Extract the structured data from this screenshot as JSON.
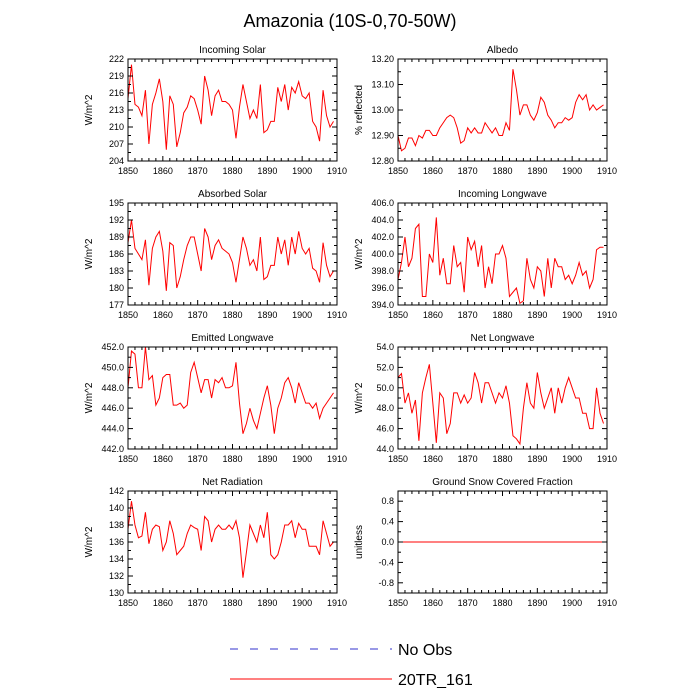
{
  "figure_title": "Amazonia (10S-0,70-50W)",
  "legend": [
    {
      "label": "No Obs",
      "color": "#3333cc",
      "dash": true
    },
    {
      "label": "20TR_161",
      "color": "#ff0000",
      "dash": false
    }
  ],
  "chart_data": [
    {
      "type": "line",
      "title": "Incoming Solar",
      "ylabel": "W/m^2",
      "xlim": [
        1850,
        1910
      ],
      "ylim": [
        204,
        222
      ],
      "xticks": [
        1850,
        1860,
        1870,
        1880,
        1890,
        1900,
        1910
      ],
      "xticklabels": [
        "1850",
        "1860",
        "1870",
        "1880",
        "1890",
        "1900",
        "1910"
      ],
      "yticks": [
        204,
        207,
        210,
        213,
        216,
        219,
        222
      ],
      "yticklabels": [
        "204",
        "207",
        "210",
        "213",
        "216",
        "219",
        "222"
      ],
      "series": [
        {
          "name": "20TR_161",
          "x0": 1850,
          "values": [
            215,
            221,
            214,
            213.5,
            212,
            216.5,
            207,
            214,
            216,
            218.5,
            214.5,
            206,
            215.5,
            214,
            206.5,
            209,
            212.5,
            213.5,
            215.5,
            215,
            213,
            210.5,
            219,
            216.5,
            212,
            215.5,
            216.5,
            214.5,
            214.5,
            214,
            213,
            208,
            213.5,
            217.5,
            214.5,
            211.5,
            213,
            211.5,
            217.5,
            209,
            209.5,
            211,
            211,
            217,
            214.5,
            217.5,
            213,
            217,
            216,
            218,
            215.5,
            215,
            216,
            211,
            210,
            207.5,
            216.5,
            212,
            210,
            211
          ]
        }
      ]
    },
    {
      "type": "line",
      "title": "Albedo",
      "ylabel": "% reflected",
      "xlim": [
        1850,
        1910
      ],
      "ylim": [
        12.8,
        13.2
      ],
      "xticks": [
        1850,
        1860,
        1870,
        1880,
        1890,
        1900,
        1910
      ],
      "xticklabels": [
        "1850",
        "1860",
        "1870",
        "1880",
        "1890",
        "1900",
        "1910"
      ],
      "yticks": [
        12.8,
        12.9,
        13.0,
        13.1,
        13.2
      ],
      "yticklabels": [
        "12.80",
        "12.90",
        "13.00",
        "13.10",
        "13.20"
      ],
      "series": [
        {
          "name": "20TR_161",
          "x0": 1850,
          "values": [
            12.9,
            12.84,
            12.85,
            12.89,
            12.89,
            12.86,
            12.9,
            12.89,
            12.92,
            12.92,
            12.9,
            12.9,
            12.93,
            12.95,
            12.97,
            12.98,
            12.97,
            12.93,
            12.87,
            12.88,
            12.93,
            12.91,
            12.93,
            12.91,
            12.91,
            12.95,
            12.93,
            12.91,
            12.93,
            12.9,
            12.9,
            12.95,
            12.92,
            13.16,
            13.08,
            12.98,
            13.02,
            13.02,
            12.98,
            12.96,
            12.99,
            13.05,
            13.03,
            12.98,
            12.96,
            12.93,
            12.95,
            12.95,
            12.97,
            12.96,
            12.97,
            13.03,
            13.06,
            13.04,
            13.06,
            13.0,
            13.02,
            13.0,
            13.01,
            13.02
          ]
        }
      ]
    },
    {
      "type": "line",
      "title": "Absorbed Solar",
      "ylabel": "W/m^2",
      "xlim": [
        1850,
        1910
      ],
      "ylim": [
        177,
        195
      ],
      "xticks": [
        1850,
        1860,
        1870,
        1880,
        1890,
        1900,
        1910
      ],
      "xticklabels": [
        "1850",
        "1860",
        "1870",
        "1880",
        "1890",
        "1900",
        "1910"
      ],
      "yticks": [
        177,
        180,
        183,
        186,
        189,
        192,
        195
      ],
      "yticklabels": [
        "177",
        "180",
        "183",
        "186",
        "189",
        "192",
        "195"
      ],
      "series": [
        {
          "name": "20TR_161",
          "x0": 1850,
          "values": [
            188,
            192,
            187,
            186,
            185,
            188.5,
            180.5,
            187,
            189,
            190,
            186.5,
            179.5,
            188,
            187.5,
            180,
            182,
            185,
            187.5,
            189,
            189,
            186,
            183,
            190.5,
            189,
            185,
            187.5,
            188.5,
            187,
            186.5,
            186,
            184.5,
            181,
            185,
            189,
            187,
            184,
            185,
            183,
            189,
            181.5,
            182,
            184,
            184,
            189,
            186,
            188.5,
            184,
            189,
            186,
            190,
            187,
            186,
            187,
            183.5,
            183,
            181,
            188,
            184,
            182,
            183
          ]
        }
      ]
    },
    {
      "type": "line",
      "title": "Incoming Longwave",
      "ylabel": "W/m^2",
      "xlim": [
        1850,
        1910
      ],
      "ylim": [
        394.0,
        406.0
      ],
      "xticks": [
        1850,
        1860,
        1870,
        1880,
        1890,
        1900,
        1910
      ],
      "xticklabels": [
        "1850",
        "1860",
        "1870",
        "1880",
        "1890",
        "1900",
        "1910"
      ],
      "yticks": [
        394.0,
        396.0,
        398.0,
        400.0,
        402.0,
        404.0,
        406.0
      ],
      "yticklabels": [
        "394.0",
        "396.0",
        "398.0",
        "400.0",
        "402.0",
        "404.0",
        "406.0"
      ],
      "series": [
        {
          "name": "20TR_161",
          "x0": 1850,
          "values": [
            397,
            399,
            402,
            398.5,
            399.5,
            403,
            403.5,
            395,
            395,
            400,
            399,
            404.3,
            397.5,
            399.5,
            396.5,
            396.5,
            401,
            398.5,
            399,
            395.5,
            402,
            400.5,
            401.5,
            398.5,
            401,
            396,
            398.5,
            396.5,
            400,
            400,
            401,
            399.5,
            395,
            395.5,
            396,
            394.2,
            394.5,
            399.5,
            397,
            396,
            398.5,
            398,
            395,
            399.5,
            396,
            399.5,
            398.5,
            398.5,
            397,
            397.5,
            396.5,
            397.5,
            399,
            397.5,
            398,
            396,
            397,
            400.5,
            400.8,
            400.8
          ]
        }
      ]
    },
    {
      "type": "line",
      "title": "Emitted Longwave",
      "ylabel": "W/m^2",
      "xlim": [
        1850,
        1910
      ],
      "ylim": [
        442.0,
        452.0
      ],
      "xticks": [
        1850,
        1860,
        1870,
        1880,
        1890,
        1900,
        1910
      ],
      "xticklabels": [
        "1850",
        "1860",
        "1870",
        "1880",
        "1890",
        "1900",
        "1910"
      ],
      "yticks": [
        442.0,
        444.0,
        446.0,
        448.0,
        450.0,
        452.0
      ],
      "yticklabels": [
        "442.0",
        "444.0",
        "446.0",
        "448.0",
        "450.0",
        "452.0"
      ],
      "series": [
        {
          "name": "20TR_161",
          "x0": 1850,
          "values": [
            448,
            451.6,
            451.3,
            448,
            448,
            452,
            448.8,
            449.2,
            446.3,
            447,
            449,
            449.3,
            449.3,
            446.3,
            446.3,
            446.5,
            446,
            446.3,
            449.5,
            450.5,
            449,
            447.5,
            448.8,
            448.8,
            447,
            448.8,
            448.5,
            449,
            448,
            448,
            448.2,
            450.5,
            446.5,
            443.5,
            444.5,
            446,
            444.8,
            444,
            445.5,
            447,
            448.2,
            446.3,
            443.5,
            446,
            447,
            448.5,
            449,
            448,
            446.5,
            448.5,
            447.5,
            446.5,
            446.5,
            446,
            446.5,
            445,
            446,
            446.5,
            447,
            447.5
          ]
        }
      ]
    },
    {
      "type": "line",
      "title": "Net Longwave",
      "ylabel": "W/m^2",
      "xlim": [
        1850,
        1910
      ],
      "ylim": [
        44.0,
        54.0
      ],
      "xticks": [
        1850,
        1860,
        1870,
        1880,
        1890,
        1900,
        1910
      ],
      "xticklabels": [
        "1850",
        "1860",
        "1870",
        "1880",
        "1890",
        "1900",
        "1910"
      ],
      "yticks": [
        44.0,
        46.0,
        48.0,
        50.0,
        52.0,
        54.0
      ],
      "yticklabels": [
        "44.0",
        "46.0",
        "48.0",
        "50.0",
        "52.0",
        "54.0"
      ],
      "series": [
        {
          "name": "20TR_161",
          "x0": 1850,
          "values": [
            51,
            51.4,
            48.5,
            49.5,
            47.5,
            48.8,
            44.8,
            49.5,
            51,
            52.3,
            48.5,
            44.6,
            49.5,
            49,
            45.5,
            46.5,
            49.5,
            49.5,
            48.5,
            49.3,
            48.5,
            49,
            51.5,
            50.5,
            48.5,
            50.5,
            50.5,
            49.5,
            48.5,
            49.5,
            49,
            50.2,
            48.5,
            45.3,
            45,
            44.5,
            48,
            50.5,
            48.5,
            48,
            51.5,
            49.5,
            48,
            49,
            50,
            47.5,
            50,
            48.5,
            50,
            51,
            50,
            49,
            49,
            47.5,
            47.5,
            46,
            46,
            50,
            47.5,
            46.5
          ]
        }
      ]
    },
    {
      "type": "line",
      "title": "Net Radiation",
      "ylabel": "W/m^2",
      "xlim": [
        1850,
        1910
      ],
      "ylim": [
        130,
        142
      ],
      "xticks": [
        1850,
        1860,
        1870,
        1880,
        1890,
        1900,
        1910
      ],
      "xticklabels": [
        "1850",
        "1860",
        "1870",
        "1880",
        "1890",
        "1900",
        "1910"
      ],
      "yticks": [
        130,
        132,
        134,
        136,
        138,
        140,
        142
      ],
      "yticklabels": [
        "130",
        "132",
        "134",
        "136",
        "138",
        "140",
        "142"
      ],
      "series": [
        {
          "name": "20TR_161",
          "x0": 1850,
          "values": [
            137.5,
            140.8,
            138,
            136.5,
            136.7,
            139.5,
            135.8,
            137.5,
            138,
            137.8,
            135,
            136,
            138.5,
            137,
            134.5,
            135,
            135.5,
            137,
            138,
            137.7,
            137.5,
            135,
            139,
            138.5,
            136,
            137.5,
            138,
            137.5,
            137.5,
            138,
            137.5,
            138.5,
            136.5,
            131.8,
            134.8,
            138,
            137,
            136,
            138,
            136.5,
            139.5,
            134.5,
            134,
            134.5,
            136,
            138,
            138,
            138.5,
            136.5,
            138.2,
            137.5,
            137.5,
            135.5,
            135.5,
            135.5,
            134.5,
            138.5,
            137,
            135.5,
            136
          ]
        }
      ]
    },
    {
      "type": "line",
      "title": "Ground Snow Covered Fraction",
      "ylabel": "unitless",
      "xlim": [
        1850,
        1910
      ],
      "ylim": [
        -1.0,
        1.0
      ],
      "xticks": [
        1850,
        1860,
        1870,
        1880,
        1890,
        1900,
        1910
      ],
      "xticklabels": [
        "1850",
        "1860",
        "1870",
        "1880",
        "1890",
        "1900",
        "1910"
      ],
      "yticks": [
        -0.8,
        -0.4,
        0.0,
        0.4,
        0.8
      ],
      "yticklabels": [
        "-0.8",
        "-0.4",
        "0.0",
        "0.4",
        "0.8"
      ],
      "series": [
        {
          "name": "20TR_161",
          "x0": 1850,
          "values": [
            0,
            0,
            0,
            0,
            0,
            0,
            0,
            0,
            0,
            0,
            0,
            0,
            0,
            0,
            0,
            0,
            0,
            0,
            0,
            0,
            0,
            0,
            0,
            0,
            0,
            0,
            0,
            0,
            0,
            0,
            0,
            0,
            0,
            0,
            0,
            0,
            0,
            0,
            0,
            0,
            0,
            0,
            0,
            0,
            0,
            0,
            0,
            0,
            0,
            0,
            0,
            0,
            0,
            0,
            0,
            0,
            0,
            0,
            0,
            0
          ]
        }
      ]
    }
  ]
}
